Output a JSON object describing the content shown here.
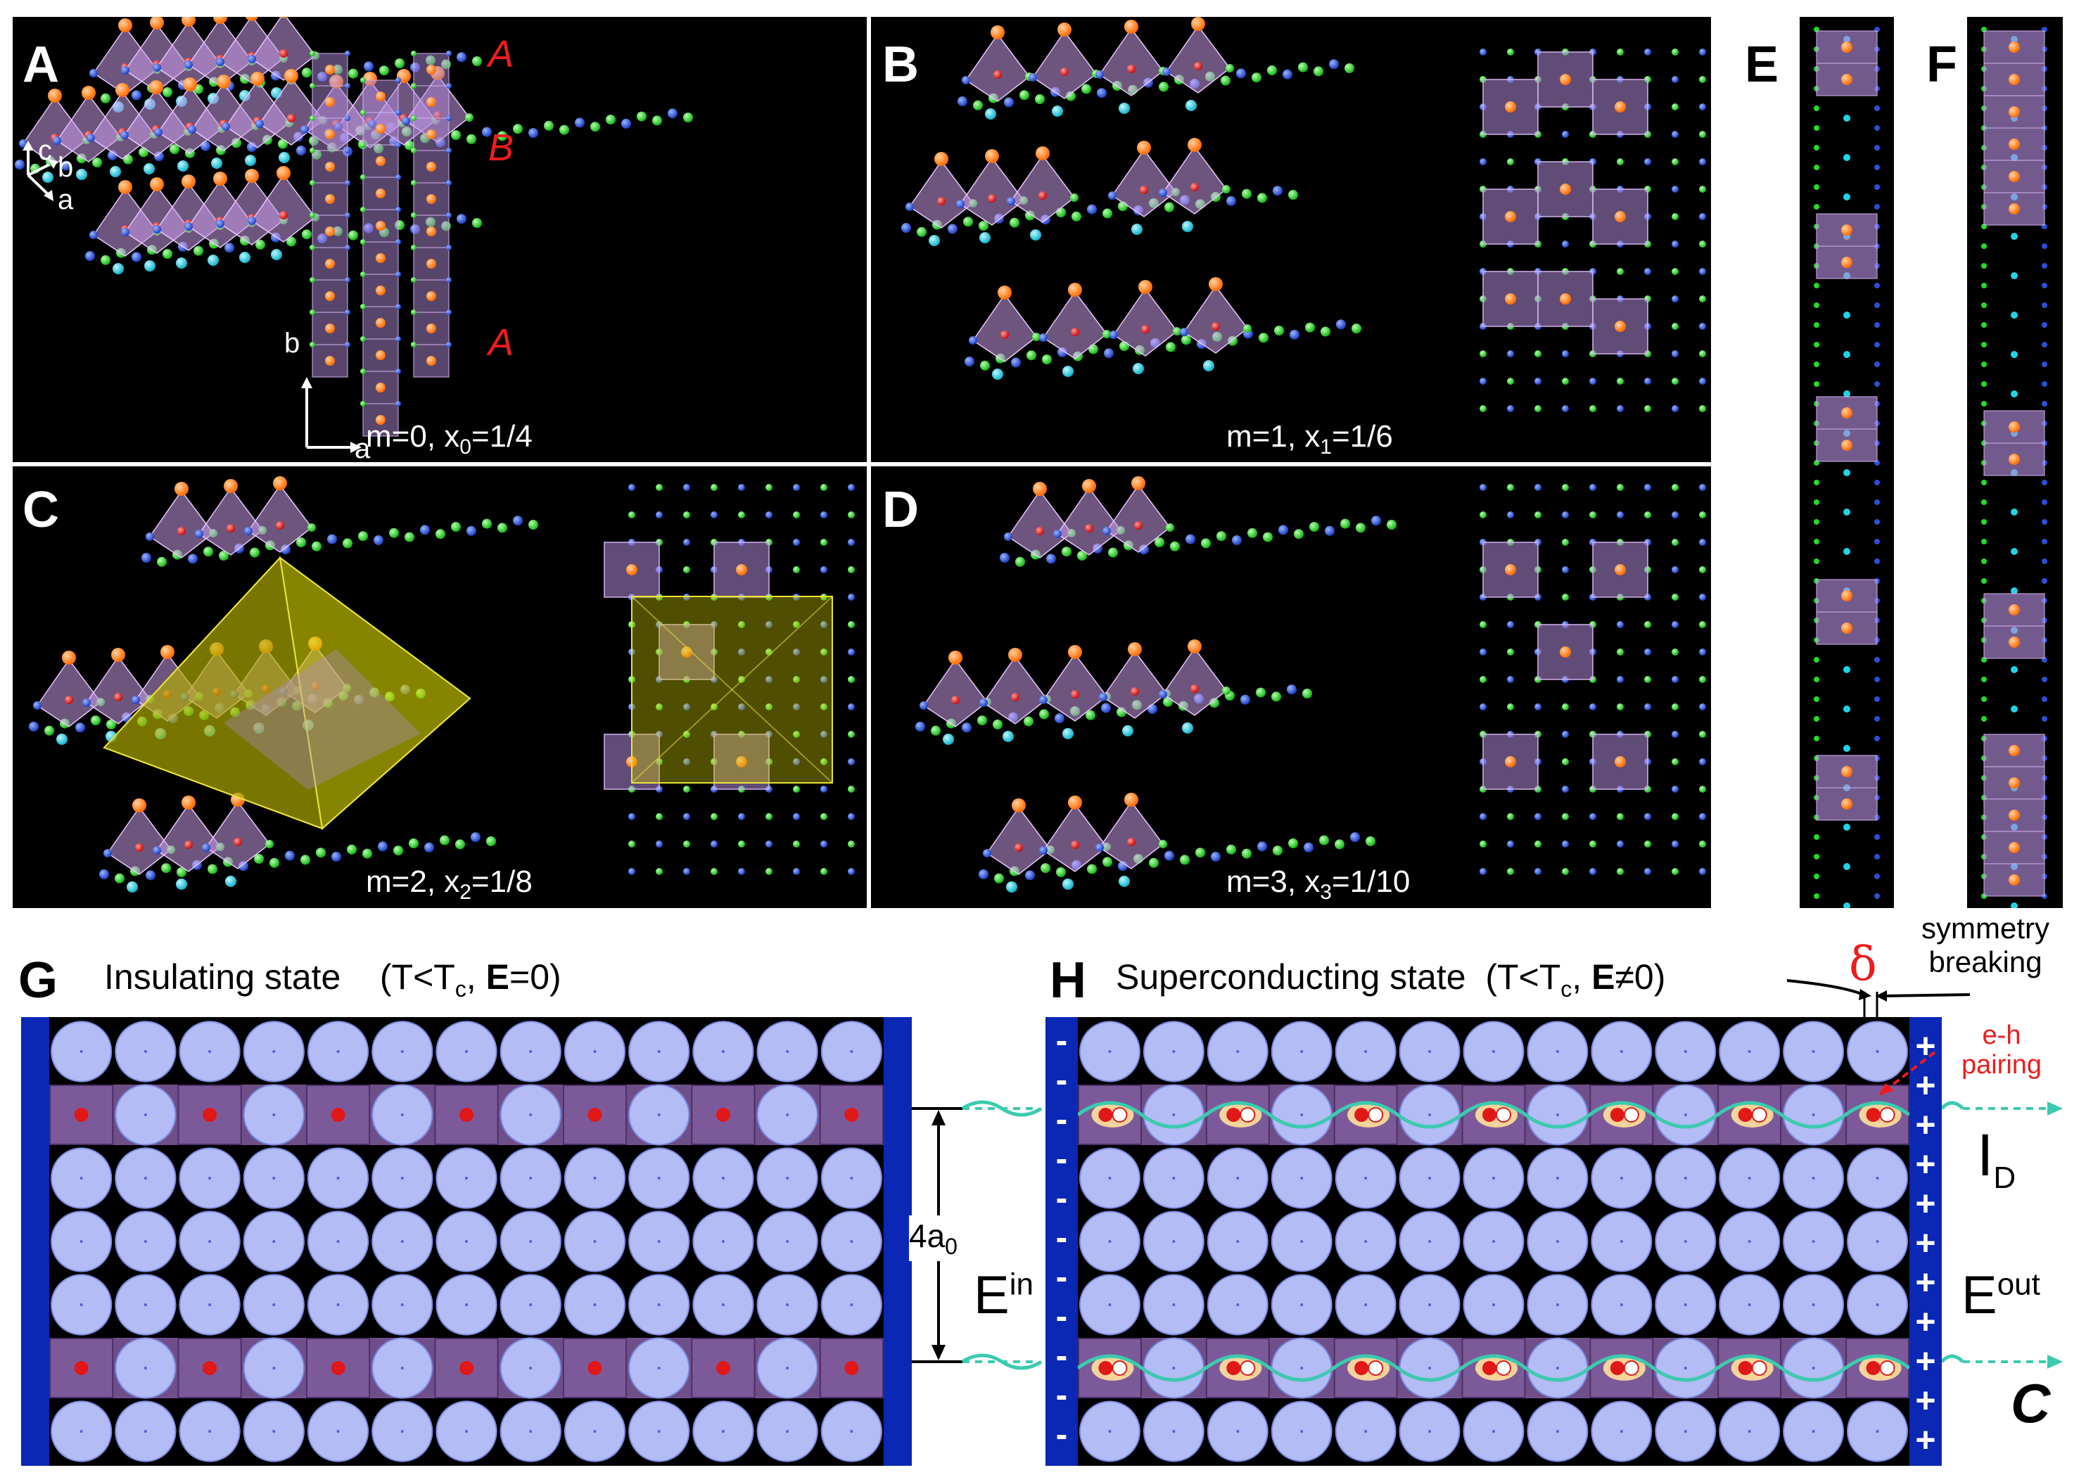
{
  "panels": {
    "A": {
      "label": "A",
      "layers": [
        "A",
        "B",
        "A"
      ],
      "axes3d": {
        "c": "c",
        "b": "b",
        "a": "a"
      },
      "axes2d": {
        "b": "b",
        "a": "a"
      },
      "caption": {
        "m": "m=0, x",
        "sub": "0",
        "frac": "=1/4"
      }
    },
    "B": {
      "label": "B",
      "caption": {
        "m": "m=1, x",
        "sub": "1",
        "frac": "=1/6"
      }
    },
    "C": {
      "label": "C",
      "caption": {
        "m": "m=2, x",
        "sub": "2",
        "frac": "=1/8"
      }
    },
    "D": {
      "label": "D",
      "caption": {
        "m": "m=3, x",
        "sub": "3",
        "frac": "=1/10"
      }
    },
    "E": {
      "label": "E"
    },
    "F": {
      "label": "F"
    }
  },
  "panel_G": {
    "label": "G",
    "title": "Insulating state",
    "condition": {
      "open": "(T<T",
      "sub": "c",
      "mid": ", ",
      "bold": "E",
      "close": "=0)"
    },
    "spacing": {
      "main": "4a",
      "sub": "0"
    }
  },
  "panel_H": {
    "label": "H",
    "title": "Superconducting state",
    "condition": {
      "open": "(T<T",
      "sub": "c",
      "mid": ", ",
      "bold": "E",
      "close": "≠0)"
    },
    "delta": "δ",
    "symmetry_breaking": "symmetry\nbreaking",
    "eh_pairing": "e-h\npairing",
    "E_in": {
      "main": "E",
      "sup": "in"
    },
    "E_out": {
      "main": "E",
      "sup": "out"
    },
    "I_D": {
      "main": "I",
      "sub": "D"
    },
    "C": "C",
    "minus_sign": "-",
    "plus_sign": "+"
  },
  "colors": {
    "background": "#000000",
    "ion_green": "#22dd22",
    "ion_blue": "#2a4fd8",
    "ion_cyan": "#22d3e6",
    "ion_orange": "#ff7a10",
    "ion_red": "#e01818",
    "octahedron": "#b08ad8",
    "yellow_cell": "#c8c400",
    "electrode": "#0a28b4",
    "lattice_circle": "#b3bcf5",
    "wave": "#3ccab0",
    "pair_halo": "#f3d49a"
  }
}
